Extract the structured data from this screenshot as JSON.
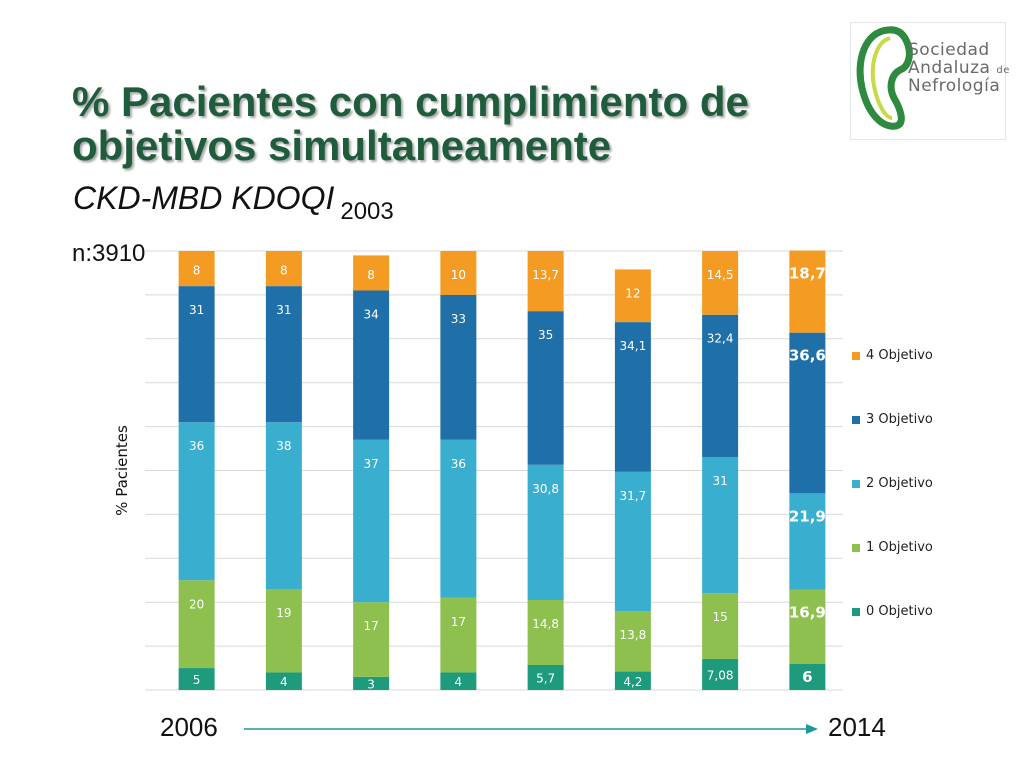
{
  "slide": {
    "title_line1": "% Pacientes con cumplimiento de",
    "title_line2": "objetivos simultaneamente",
    "subtitle": "CKD-MBD KDOQI",
    "subtitle_year": "2003",
    "n_label": "n:3910",
    "start_year": "2006",
    "end_year": "2014"
  },
  "logo": {
    "line1": "Sociedad",
    "line2": "Andaluza",
    "line2_suffix": "de",
    "line3": "Nefrología"
  },
  "chart_data": {
    "type": "bar",
    "stacked": true,
    "ylabel": "% Pacientes",
    "ylim": [
      0,
      100
    ],
    "grid": true,
    "legend_position": "right",
    "column_count": 8,
    "series": [
      {
        "name": "0 Objetivo",
        "color": "#1e9b7d",
        "values": [
          5,
          4,
          3,
          4,
          5.7,
          4.2,
          7.08,
          6
        ],
        "labels": [
          "5",
          "4",
          "3",
          "4",
          "5,7",
          "4,2",
          "7,08",
          "6"
        ]
      },
      {
        "name": "1 Objetivo",
        "color": "#8dc04f",
        "values": [
          20,
          19,
          17,
          17,
          14.8,
          13.8,
          15,
          16.9
        ],
        "labels": [
          "20",
          "19",
          "17",
          "17",
          "14,8",
          "13,8",
          "15",
          "16,9"
        ]
      },
      {
        "name": "2  Objetivo",
        "color": "#3aaecf",
        "values": [
          36,
          38,
          37,
          36,
          30.8,
          31.7,
          31,
          21.9
        ],
        "labels": [
          "36",
          "38",
          "37",
          "36",
          "30,8",
          "31,7",
          "31",
          "21,9"
        ]
      },
      {
        "name": "3  Objetivo",
        "color": "#1f6fa8",
        "values": [
          31,
          31,
          34,
          33,
          35,
          34.1,
          32.4,
          36.6
        ],
        "labels": [
          "31",
          "31",
          "34",
          "33",
          "35",
          "34,1",
          "32,4",
          "36,6"
        ]
      },
      {
        "name": "4  Objetivo",
        "color": "#f39b22",
        "values": [
          8,
          8,
          8,
          10,
          13.7,
          12,
          14.5,
          18.7
        ],
        "labels": [
          "8",
          "8",
          "8",
          "10",
          "13,7",
          "12",
          "14,5",
          "18,7"
        ]
      }
    ]
  }
}
